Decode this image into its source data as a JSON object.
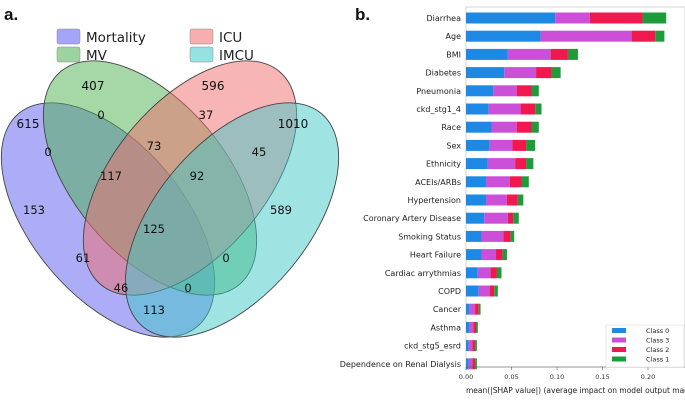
{
  "chart_data": [
    {
      "type": "venn",
      "panel_label": "a.",
      "sets": [
        {
          "name": "Mortality",
          "total": "615",
          "color": "#5b5bf0"
        },
        {
          "name": "MV",
          "total": "407",
          "color": "#4caf50"
        },
        {
          "name": "ICU",
          "total": "596",
          "color": "#f26b6b"
        },
        {
          "name": "IMCU",
          "total": "1010",
          "color": "#40c8c8"
        }
      ],
      "regions": [
        {
          "sets": "MV",
          "value": "0"
        },
        {
          "sets": "ICU",
          "value": "37"
        },
        {
          "sets": "Mortality",
          "value": "153"
        },
        {
          "sets": "IMCU",
          "value": "589"
        },
        {
          "sets": "Mortality∩MV",
          "value": "0"
        },
        {
          "sets": "MV∩ICU",
          "value": "73"
        },
        {
          "sets": "ICU∩IMCU",
          "value": "45"
        },
        {
          "sets": "Mortality∩MV∩ICU",
          "value": "117"
        },
        {
          "sets": "MV∩ICU∩IMCU",
          "value": "92"
        },
        {
          "sets": "all",
          "value": "125"
        },
        {
          "sets": "Mortality∩ICU",
          "value": "61"
        },
        {
          "sets": "MV∩IMCU",
          "value": "0"
        },
        {
          "sets": "Mortality∩ICU∩IMCU",
          "value": "46"
        },
        {
          "sets": "Mortality∩MV∩IMCU",
          "value": "0"
        },
        {
          "sets": "Mortality∩IMCU",
          "value": "113"
        }
      ]
    },
    {
      "type": "bar",
      "orientation": "horizontal",
      "stacked": true,
      "panel_label": "b.",
      "xlabel": "mean(|SHAP value|) (average impact on model output magnitude)",
      "xlim": [
        0,
        0.22
      ],
      "xticks": [
        "0.00",
        "0.05",
        "0.10",
        "0.15",
        "0.20"
      ],
      "categories": [
        "Diarrhea",
        "Age",
        "BMI",
        "Diabetes",
        "Pneumonia",
        "ckd_stg1_4",
        "Race",
        "Sex",
        "Ethnicity",
        "ACEIs/ARBs",
        "Hypertension",
        "Coronary Artery Disease",
        "Smoking Status",
        "Heart Failure",
        "Cardiac arrythmias",
        "COPD",
        "Cancer",
        "Asthma",
        "ckd_stg5_esrd",
        "Dependence on Renal Dialysis"
      ],
      "series": [
        {
          "name": "Class 0",
          "color": "#1e88e5",
          "values": [
            0.098,
            0.082,
            0.046,
            0.042,
            0.03,
            0.025,
            0.028,
            0.026,
            0.024,
            0.022,
            0.022,
            0.02,
            0.017,
            0.017,
            0.013,
            0.014,
            0.004,
            0.004,
            0.003,
            0.003
          ]
        },
        {
          "name": "Class 3",
          "color": "#cc4fd8",
          "values": [
            0.038,
            0.1,
            0.047,
            0.035,
            0.026,
            0.035,
            0.028,
            0.025,
            0.03,
            0.026,
            0.023,
            0.026,
            0.024,
            0.016,
            0.014,
            0.012,
            0.006,
            0.004,
            0.004,
            0.004
          ]
        },
        {
          "name": "Class 2",
          "color": "#f0184c",
          "values": [
            0.058,
            0.026,
            0.019,
            0.017,
            0.016,
            0.016,
            0.016,
            0.015,
            0.012,
            0.013,
            0.012,
            0.006,
            0.008,
            0.007,
            0.007,
            0.005,
            0.004,
            0.003,
            0.003,
            0.003
          ]
        },
        {
          "name": "Class 1",
          "color": "#1e9c3c",
          "values": [
            0.026,
            0.01,
            0.011,
            0.01,
            0.008,
            0.007,
            0.008,
            0.01,
            0.008,
            0.008,
            0.006,
            0.006,
            0.004,
            0.005,
            0.005,
            0.004,
            0.002,
            0.002,
            0.002,
            0.002
          ]
        }
      ],
      "legend_order": [
        "Class 0",
        "Class 3",
        "Class 2",
        "Class 1"
      ],
      "legend_position": "bottom-right"
    }
  ]
}
